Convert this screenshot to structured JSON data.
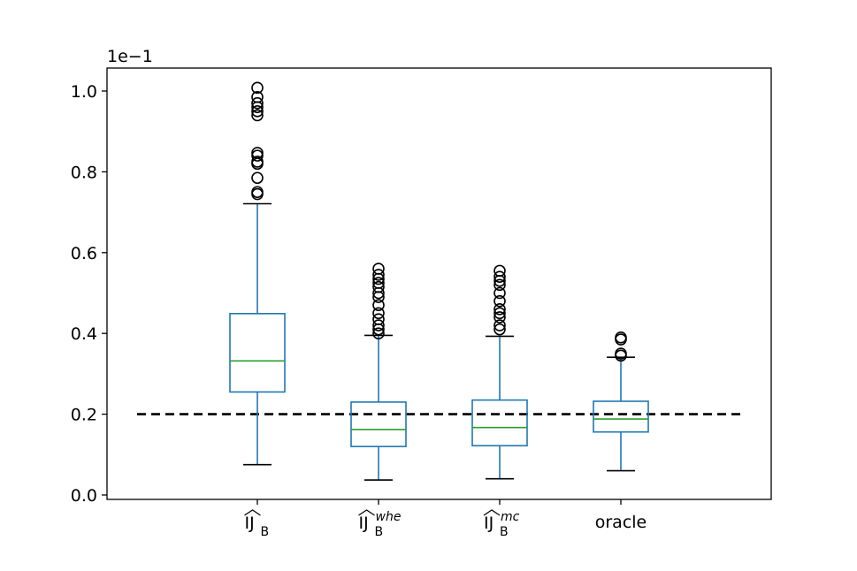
{
  "chart_data": {
    "type": "box",
    "y_offset_label": "1e−1",
    "ylim": [
      0.0,
      1.05
    ],
    "yticks": [
      "0.0",
      "0.2",
      "0.4",
      "0.6",
      "0.8",
      "1.0"
    ],
    "reference_line": {
      "y": 0.2,
      "style": "dashed",
      "color": "#000000"
    },
    "grid": false,
    "colors": {
      "box": "#1f77b4",
      "median": "#2ca02c",
      "whisker_cap": "#000000",
      "flier": "#000000",
      "axis": "#000000"
    },
    "categories": [
      {
        "label_main": "IJ",
        "label_sub": "B",
        "label_sup": "",
        "hat": true
      },
      {
        "label_main": "IJ",
        "label_sub": "B",
        "label_sup": "whe",
        "hat": true
      },
      {
        "label_main": "IJ",
        "label_sub": "B",
        "label_sup": "mc",
        "hat": true
      },
      {
        "label_main": "oracle",
        "label_sub": "",
        "label_sup": "",
        "hat": false
      }
    ],
    "boxes": [
      {
        "whislo": 0.075,
        "q1": 0.255,
        "med": 0.332,
        "q3": 0.449,
        "whishi": 0.721,
        "fliers": [
          0.745,
          0.75,
          0.785,
          0.82,
          0.825,
          0.84,
          0.847,
          0.94,
          0.95,
          0.96,
          0.97,
          0.985,
          1.008
        ]
      },
      {
        "whislo": 0.037,
        "q1": 0.12,
        "med": 0.162,
        "q3": 0.23,
        "whishi": 0.395,
        "fliers": [
          0.4,
          0.41,
          0.42,
          0.435,
          0.45,
          0.47,
          0.49,
          0.5,
          0.515,
          0.525,
          0.535,
          0.545,
          0.56
        ]
      },
      {
        "whislo": 0.04,
        "q1": 0.122,
        "med": 0.167,
        "q3": 0.235,
        "whishi": 0.393,
        "fliers": [
          0.41,
          0.42,
          0.44,
          0.45,
          0.46,
          0.48,
          0.5,
          0.52,
          0.53,
          0.54,
          0.555
        ]
      },
      {
        "whislo": 0.06,
        "q1": 0.156,
        "med": 0.188,
        "q3": 0.232,
        "whishi": 0.341,
        "fliers": [
          0.345,
          0.35,
          0.385,
          0.39
        ]
      }
    ]
  }
}
